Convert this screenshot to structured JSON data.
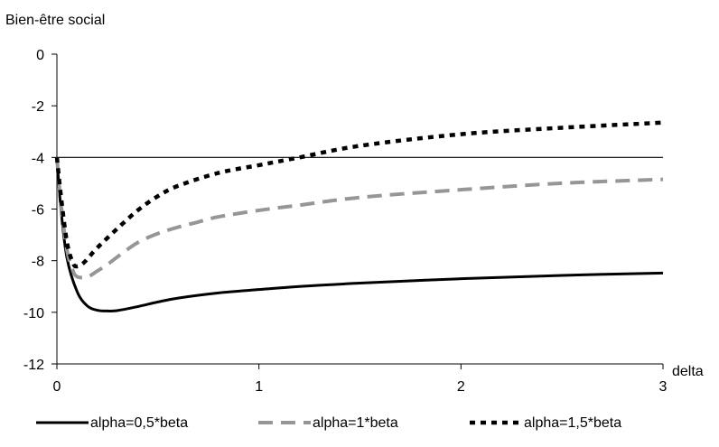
{
  "chart_data": {
    "type": "line",
    "title": "",
    "ylabel": "Bien-être social",
    "xlabel": "delta",
    "xlim": [
      0,
      3
    ],
    "ylim": [
      -12,
      0
    ],
    "x_ticks": [
      0,
      1,
      2,
      3
    ],
    "y_ticks": [
      0,
      -2,
      -4,
      -6,
      -8,
      -10,
      -12
    ],
    "x_tick_labels": [
      "0",
      "1",
      "2",
      "3"
    ],
    "y_tick_labels": [
      "0",
      "-2",
      "-4",
      "-6",
      "-8",
      "-10",
      "-12"
    ],
    "grid": false,
    "legend_position": "bottom",
    "reference_line": {
      "y": -4,
      "color": "#000000"
    },
    "series": [
      {
        "name": "alpha=0,5*beta",
        "color": "#000000",
        "style": "solid",
        "x": [
          0,
          0.02,
          0.05,
          0.1,
          0.15,
          0.2,
          0.25,
          0.3,
          0.4,
          0.5,
          0.6,
          0.8,
          1.0,
          1.2,
          1.5,
          2.0,
          2.5,
          3.0
        ],
        "y": [
          -4.0,
          -6.0,
          -7.9,
          -9.2,
          -9.75,
          -9.92,
          -9.95,
          -9.93,
          -9.78,
          -9.6,
          -9.45,
          -9.25,
          -9.12,
          -9.0,
          -8.87,
          -8.7,
          -8.57,
          -8.48
        ]
      },
      {
        "name": "alpha=1*beta",
        "color": "#969696",
        "style": "dashed",
        "x": [
          0,
          0.02,
          0.05,
          0.08,
          0.1,
          0.13,
          0.16,
          0.2,
          0.25,
          0.3,
          0.4,
          0.5,
          0.6,
          0.7,
          0.8,
          1.0,
          1.2,
          1.5,
          2.0,
          2.5,
          3.0
        ],
        "y": [
          -4.0,
          -5.8,
          -7.6,
          -8.4,
          -8.62,
          -8.65,
          -8.6,
          -8.4,
          -8.15,
          -7.85,
          -7.3,
          -6.95,
          -6.7,
          -6.5,
          -6.3,
          -6.05,
          -5.85,
          -5.55,
          -5.25,
          -5.0,
          -4.85
        ]
      },
      {
        "name": "alpha=1,5*beta",
        "color": "#000000",
        "style": "dotted",
        "x": [
          0,
          0.02,
          0.05,
          0.08,
          0.1,
          0.13,
          0.16,
          0.2,
          0.3,
          0.4,
          0.5,
          0.6,
          0.8,
          1.0,
          1.2,
          1.5,
          2.0,
          2.5,
          3.0
        ],
        "y": [
          -4.0,
          -5.5,
          -7.3,
          -8.1,
          -8.22,
          -8.1,
          -7.85,
          -7.5,
          -6.75,
          -6.05,
          -5.5,
          -5.1,
          -4.6,
          -4.3,
          -4.0,
          -3.55,
          -3.1,
          -2.85,
          -2.65
        ]
      }
    ]
  }
}
